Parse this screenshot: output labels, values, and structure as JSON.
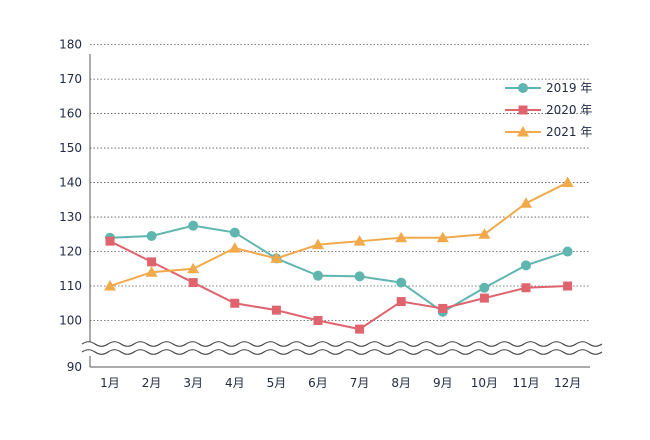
{
  "chart_data": {
    "type": "line",
    "categories": [
      "1月",
      "2月",
      "3月",
      "4月",
      "5月",
      "6月",
      "7月",
      "8月",
      "9月",
      "10月",
      "11月",
      "12月"
    ],
    "series": [
      {
        "name": "2019 年",
        "color": "#5fb5b0",
        "marker": "circle",
        "values": [
          124,
          124.5,
          127.5,
          125.5,
          118,
          113,
          112.8,
          111,
          102.5,
          109.5,
          116,
          120
        ]
      },
      {
        "name": "2020 年",
        "color": "#e0646e",
        "marker": "square",
        "values": [
          123,
          117,
          111,
          105,
          103,
          100,
          97.5,
          105.5,
          103.5,
          106.5,
          109.5,
          110
        ]
      },
      {
        "name": "2021 年",
        "color": "#f2a94a",
        "marker": "triangle",
        "values": [
          110,
          114,
          115,
          121,
          118,
          122,
          123,
          124,
          124,
          125,
          134,
          140
        ]
      }
    ],
    "yticks": [
      90,
      100,
      110,
      120,
      130,
      140,
      150,
      160,
      170,
      180
    ],
    "ylim": [
      90,
      180
    ],
    "axis_break": true,
    "grid": true,
    "legend_position": "top-right"
  }
}
